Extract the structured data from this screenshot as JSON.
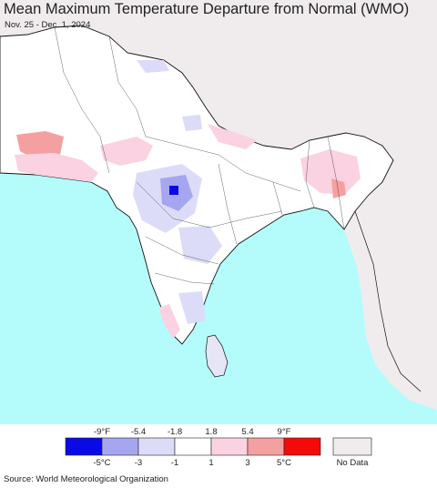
{
  "title": "Mean Maximum Temperature Departure from Normal (WMO)",
  "date_range": "Nov. 25 - Dec. 1, 2024",
  "source": "Source: World Meteorological Organization",
  "legend": {
    "fahrenheit_ticks": [
      "-9°F",
      "-5.4",
      "-1.8",
      "1.8",
      "5.4",
      "9°F"
    ],
    "celsius_ticks": [
      "-5°C",
      "-3",
      "-1",
      "1",
      "3",
      "5°C"
    ],
    "colors": [
      "#0a0ae6",
      "#a6a6f0",
      "#dcdcf8",
      "#ffffff",
      "#fad2e1",
      "#f5a0a0",
      "#f50a0a"
    ],
    "no_data_label": "No Data",
    "no_data_color": "#f0ecee"
  },
  "map_colors": {
    "sea": "#b4fcfc",
    "outside_region": "#f0ecee",
    "land_normal": "#ffffff",
    "border": "#111111"
  }
}
